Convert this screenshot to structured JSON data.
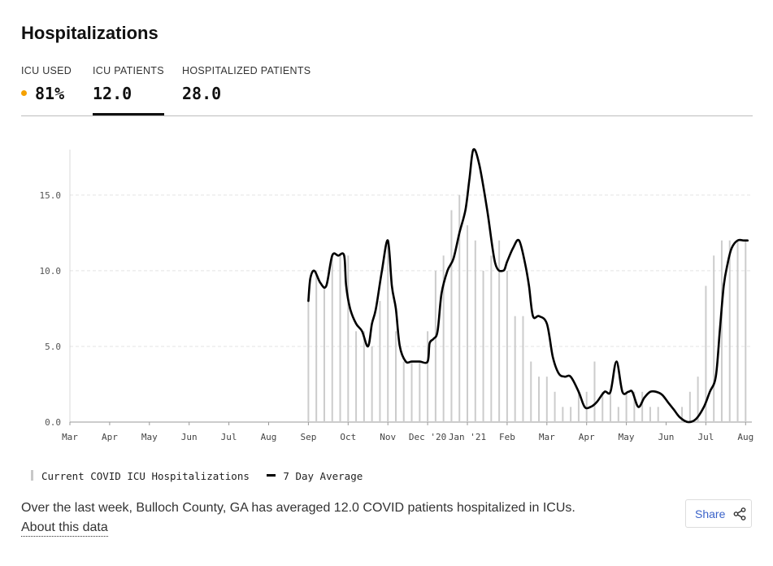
{
  "title": "Hospitalizations",
  "tabs": [
    {
      "label": "ICU USED",
      "value": "81%",
      "dot_color": "#f5a100"
    },
    {
      "label": "ICU PATIENTS",
      "value": "12.0"
    },
    {
      "label": "HOSPITALIZED PATIENTS",
      "value": "28.0"
    }
  ],
  "active_tab": 1,
  "legend": {
    "bars": "Current COVID ICU Hospitalizations",
    "line": "7 Day Average"
  },
  "summary": "Over the last week, Bulloch County, GA has averaged 12.0 COVID patients hospitalized in ICUs.",
  "about_link": "About this data",
  "share": {
    "label": "Share",
    "icon": "share-icon"
  },
  "chart_data": {
    "type": "bar+line",
    "title": "",
    "xlabel": "",
    "ylabel": "",
    "ylim": [
      0,
      18
    ],
    "yticks": [
      "0.0",
      "5.0",
      "10.0",
      "15.0"
    ],
    "ytick_values": [
      0,
      5,
      10,
      15
    ],
    "grid": true,
    "x_ticks": [
      "Mar",
      "Apr",
      "May",
      "Jun",
      "Jul",
      "Aug",
      "Sep",
      "Oct",
      "Nov",
      "Dec '20",
      "Jan '21",
      "Feb",
      "Mar",
      "Apr",
      "May",
      "Jun",
      "Jul",
      "Aug"
    ],
    "bar_color": "#cccccc",
    "line_color": "#000000",
    "series": [
      {
        "name": "Current COVID ICU Hospitalizations",
        "type": "bar",
        "x": [
          6.0,
          6.2,
          6.4,
          6.6,
          6.8,
          7.0,
          7.2,
          7.4,
          7.6,
          7.8,
          8.0,
          8.2,
          8.4,
          8.6,
          8.8,
          9.0,
          9.2,
          9.4,
          9.6,
          9.8,
          10.0,
          10.2,
          10.4,
          10.6,
          10.8,
          11.0,
          11.2,
          11.4,
          11.6,
          11.8,
          12.0,
          12.2,
          12.4,
          12.6,
          12.8,
          13.0,
          13.2,
          13.4,
          13.6,
          13.8,
          14.0,
          14.2,
          14.4,
          14.6,
          14.8,
          15.0,
          15.2,
          15.4,
          15.6,
          15.8,
          16.0,
          16.2,
          16.4,
          16.6,
          16.8,
          17.0
        ],
        "values": [
          8,
          10,
          9,
          11,
          11,
          11,
          6,
          6,
          5,
          8,
          12,
          6,
          4,
          4,
          4,
          6,
          10,
          11,
          14,
          15,
          13,
          12,
          10,
          11,
          12,
          10,
          7,
          7,
          4,
          3,
          3,
          2,
          1,
          1,
          2,
          2,
          4,
          2,
          2,
          1,
          2,
          2,
          2,
          1,
          1,
          0,
          0,
          1,
          2,
          3,
          9,
          11,
          12,
          12,
          12,
          12
        ]
      },
      {
        "name": "7 Day Average",
        "type": "line",
        "x": [
          6.0,
          6.05,
          6.15,
          6.3,
          6.45,
          6.6,
          6.75,
          6.9,
          6.95,
          7.05,
          7.2,
          7.35,
          7.5,
          7.6,
          7.7,
          7.85,
          8.0,
          8.1,
          8.2,
          8.3,
          8.45,
          8.6,
          8.8,
          9.0,
          9.05,
          9.15,
          9.25,
          9.35,
          9.5,
          9.65,
          9.8,
          9.95,
          10.05,
          10.15,
          10.3,
          10.5,
          10.7,
          10.9,
          11.0,
          11.15,
          11.3,
          11.45,
          11.55,
          11.65,
          11.8,
          12.0,
          12.15,
          12.3,
          12.45,
          12.6,
          12.8,
          12.95,
          13.1,
          13.25,
          13.45,
          13.6,
          13.75,
          13.9,
          14.05,
          14.15,
          14.3,
          14.45,
          14.6,
          14.75,
          14.9,
          15.05,
          15.2,
          15.35,
          15.55,
          15.75,
          15.95,
          16.1,
          16.25,
          16.35,
          16.45,
          16.55,
          16.65,
          16.8,
          16.95,
          17.05
        ],
        "values": [
          8,
          9.5,
          10,
          9.2,
          9,
          11,
          11,
          11,
          9,
          7.5,
          6.5,
          6,
          5,
          6.5,
          7.5,
          10,
          12,
          9,
          7.5,
          5,
          4,
          4,
          4,
          4,
          5.2,
          5.5,
          6,
          8.5,
          10,
          10.8,
          12.5,
          14,
          16,
          18,
          17,
          14,
          10.5,
          10,
          10.6,
          11.5,
          12,
          10.5,
          9,
          7,
          7,
          6.5,
          4.3,
          3.2,
          3,
          3,
          2,
          1,
          1,
          1.3,
          2,
          2,
          4,
          2,
          2,
          2,
          1,
          1.6,
          2,
          2,
          1.8,
          1.3,
          0.8,
          0.3,
          0,
          0.2,
          1,
          2,
          3,
          6,
          9,
          10.5,
          11.5,
          12,
          12,
          12
        ]
      }
    ]
  }
}
